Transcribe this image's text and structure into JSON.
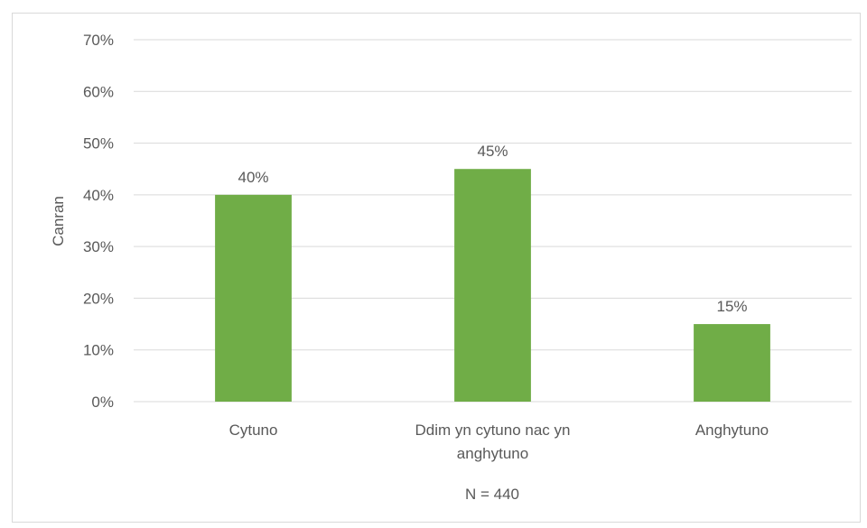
{
  "chart_data": {
    "type": "bar",
    "categories": [
      "Cytuno",
      "Ddim yn cytuno nac yn anghytuno",
      "Anghytuno"
    ],
    "category_lines": [
      [
        "Cytuno"
      ],
      [
        "Ddim yn cytuno nac yn",
        "anghytuno"
      ],
      [
        "Anghytuno"
      ]
    ],
    "values": [
      40,
      45,
      15
    ],
    "data_labels": [
      "40%",
      "45%",
      "15%"
    ],
    "ylabel": "Canran",
    "xlabel": "N = 440",
    "ylim": [
      0,
      70
    ],
    "yticks": [
      "0%",
      "10%",
      "20%",
      "30%",
      "40%",
      "50%",
      "60%",
      "70%"
    ],
    "grid": true,
    "legend": "none",
    "colors": {
      "bar": "#70ad47",
      "grid": "#d9d9d9",
      "text": "#595959"
    }
  }
}
